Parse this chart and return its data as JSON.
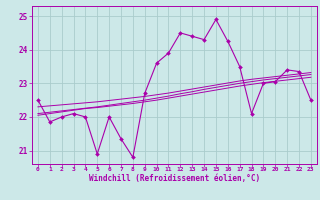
{
  "xlabel": "Windchill (Refroidissement éolien,°C)",
  "background_color": "#cce8e8",
  "grid_color": "#aacccc",
  "line_color": "#aa00aa",
  "x": [
    0,
    1,
    2,
    3,
    4,
    5,
    6,
    7,
    8,
    9,
    10,
    11,
    12,
    13,
    14,
    15,
    16,
    17,
    18,
    19,
    20,
    21,
    22,
    23
  ],
  "main": [
    22.5,
    21.85,
    22.0,
    22.1,
    22.0,
    20.9,
    22.0,
    21.35,
    20.8,
    22.7,
    23.6,
    23.9,
    24.5,
    24.4,
    24.3,
    24.9,
    24.25,
    23.5,
    22.1,
    23.0,
    23.05,
    23.4,
    23.35,
    22.5
  ],
  "trend1": [
    22.05,
    22.1,
    22.15,
    22.2,
    22.25,
    22.28,
    22.32,
    22.36,
    22.4,
    22.45,
    22.5,
    22.56,
    22.62,
    22.68,
    22.74,
    22.8,
    22.86,
    22.92,
    22.97,
    23.02,
    23.06,
    23.1,
    23.14,
    23.18
  ],
  "trend2": [
    22.1,
    22.14,
    22.18,
    22.22,
    22.26,
    22.3,
    22.35,
    22.4,
    22.45,
    22.5,
    22.56,
    22.62,
    22.69,
    22.75,
    22.82,
    22.88,
    22.94,
    23.0,
    23.05,
    23.1,
    23.14,
    23.18,
    23.22,
    23.26
  ],
  "trend3": [
    22.3,
    22.33,
    22.36,
    22.39,
    22.42,
    22.45,
    22.49,
    22.53,
    22.57,
    22.61,
    22.66,
    22.71,
    22.77,
    22.83,
    22.89,
    22.95,
    23.01,
    23.07,
    23.12,
    23.16,
    23.2,
    23.24,
    23.28,
    23.32
  ],
  "ylim": [
    20.6,
    25.3
  ],
  "yticks": [
    21,
    22,
    23,
    24,
    25
  ],
  "xlim": [
    -0.5,
    23.5
  ]
}
